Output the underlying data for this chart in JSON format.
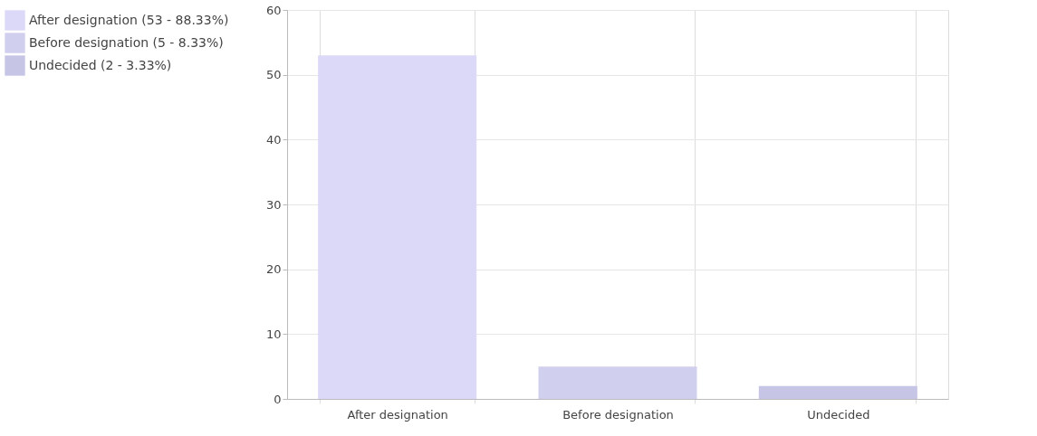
{
  "chart_data": {
    "type": "bar",
    "categories": [
      "After designation",
      "Before designation",
      "Undecided"
    ],
    "series": [
      {
        "name": "After designation (53 - 88.33%)",
        "color": "#dbd9f7",
        "values": [
          53,
          null,
          null
        ]
      },
      {
        "name": "Before designation (5 - 8.33%)",
        "color": "#d0cfee",
        "values": [
          null,
          5,
          null
        ]
      },
      {
        "name": "Undecided (2 - 3.33%)",
        "color": "#c6c5e5",
        "values": [
          null,
          null,
          2
        ]
      }
    ],
    "ylim": [
      0,
      60
    ],
    "yticks": [
      0,
      10,
      20,
      30,
      40,
      50,
      60
    ],
    "grid": true,
    "legend": "top left"
  }
}
